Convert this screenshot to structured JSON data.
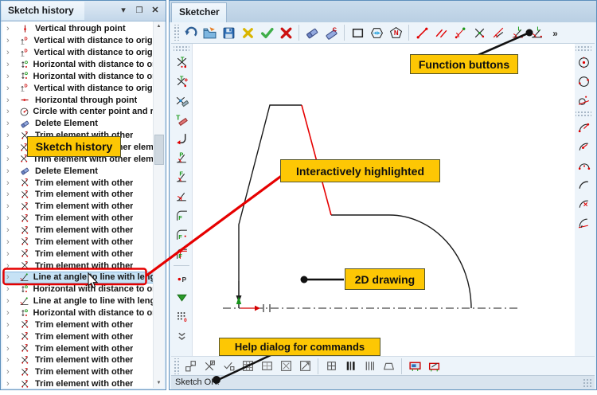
{
  "glyphs": {
    "menu": "▾",
    "maximize": "❒",
    "close": "✕",
    "scroll_up": "▲",
    "scroll_down": "▼",
    "row_chevron": "›"
  },
  "colors": {
    "callout_bg": "#fdc704",
    "highlight_red": "#e60000",
    "selection_bg": "#c6e2f5",
    "window_border": "#5d8fbc"
  },
  "sketch_history_window": {
    "title": "Sketch history",
    "buttons": [
      {
        "name": "menu",
        "glyph": "▾"
      },
      {
        "name": "maximize",
        "glyph": "❒"
      },
      {
        "name": "close",
        "glyph": "✕"
      }
    ],
    "items": [
      {
        "icon": "vertical-through-point",
        "label": "Vertical through point"
      },
      {
        "icon": "vertical-distance-origin",
        "label": "Vertical with distance to origin"
      },
      {
        "icon": "vertical-distance-origin",
        "label": "Vertical with distance to origin"
      },
      {
        "icon": "horizontal-distance-origin",
        "label": "Horizontal with distance to ori..."
      },
      {
        "icon": "horizontal-distance-origin",
        "label": "Horizontal with distance to ori..."
      },
      {
        "icon": "vertical-distance-origin",
        "label": "Vertical with distance to origin"
      },
      {
        "icon": "horizontal-through-point",
        "label": "Horizontal through point"
      },
      {
        "icon": "circle-center-radius",
        "label": "Circle with center point and ra..."
      },
      {
        "icon": "delete-element",
        "label": "Delete Element"
      },
      {
        "icon": "trim-element",
        "label": "Trim element with other"
      },
      {
        "icon": "trim-element",
        "label": "Trim element with other eleme..."
      },
      {
        "icon": "trim-element",
        "label": "Trim element with other eleme..."
      },
      {
        "icon": "delete-element",
        "label": "Delete Element"
      },
      {
        "icon": "trim-element",
        "label": "Trim element with other"
      },
      {
        "icon": "trim-element",
        "label": "Trim element with other"
      },
      {
        "icon": "trim-element",
        "label": "Trim element with other"
      },
      {
        "icon": "trim-element",
        "label": "Trim element with other"
      },
      {
        "icon": "trim-element",
        "label": "Trim element with other"
      },
      {
        "icon": "trim-element",
        "label": "Trim element with other"
      },
      {
        "icon": "trim-element",
        "label": "Trim element with other"
      },
      {
        "icon": "trim-element",
        "label": "Trim element with other"
      },
      {
        "icon": "line-angle-length",
        "label": "Line at angle to line with length",
        "selected": true
      },
      {
        "icon": "horizontal-distance-origin",
        "label": "Horizontal with distance to ori..."
      },
      {
        "icon": "line-angle-length",
        "label": "Line at angle to line with length"
      },
      {
        "icon": "horizontal-distance-origin",
        "label": "Horizontal with distance to ori..."
      },
      {
        "icon": "trim-element",
        "label": "Trim element with other"
      },
      {
        "icon": "trim-element",
        "label": "Trim element with other"
      },
      {
        "icon": "trim-element",
        "label": "Trim element with other"
      },
      {
        "icon": "trim-element",
        "label": "Trim element with other"
      },
      {
        "icon": "trim-element",
        "label": "Trim element with other"
      },
      {
        "icon": "trim-element",
        "label": "Trim element with other"
      }
    ]
  },
  "sketcher_window": {
    "title": "Sketcher",
    "status": "Sketch OK.",
    "top_toolbar": [
      "~",
      "undo",
      "open",
      "save",
      "discard",
      "accept",
      "cancel",
      "|",
      "erase",
      "erase-c",
      "|",
      "rect",
      "poly-width",
      "poly-n",
      "|",
      "line",
      "parallel",
      "line-angle-point",
      "cross",
      "line-angle-line",
      "angle-length-1",
      "angle-length-2",
      "more"
    ],
    "left_toolbar": [
      "~",
      "trim-t",
      "trim-t-plus",
      "trim-sweep",
      "tangent-line",
      "corner",
      "angle-p",
      "angle-f",
      "angle-a",
      "corner-f1",
      "corner-f2",
      "corner-f3",
      "|",
      "point-p",
      "triangle-down",
      "grid-0",
      "more-down"
    ],
    "right_toolbar": [
      "~",
      "circle-center",
      "circle-edge",
      "circle-tangent",
      "~",
      "arc-endpoints",
      "arc-center",
      "arc-half",
      "arc-plain",
      "arc-cross",
      "arc-angle"
    ],
    "bottom_toolbar": [
      "~",
      "pan-squares",
      "cross-f",
      "check-square",
      "grid-dense",
      "grid-light",
      "square-x",
      "square-diag",
      "|",
      "grid-small",
      "bars-thick",
      "bars-thin",
      "trapezoid",
      "|",
      "table-blue",
      "table-edit"
    ]
  },
  "callouts": {
    "function_buttons": {
      "label": "Function buttons"
    },
    "sketch_history": {
      "label": "Sketch history"
    },
    "interactively_highlighted": {
      "label": "Interactively highlighted"
    },
    "drawing_2d": {
      "label": "2D drawing"
    },
    "help_dialog": {
      "label": "Help dialog for commands"
    }
  }
}
